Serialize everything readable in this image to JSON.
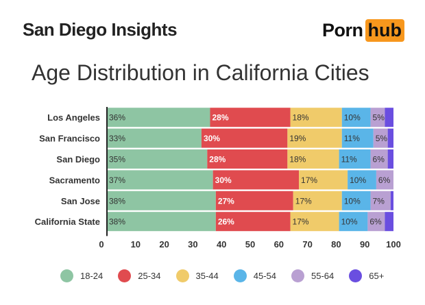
{
  "header": {
    "title": "San Diego Insights",
    "logo_left": "Porn",
    "logo_right": "hub"
  },
  "chart_data": {
    "type": "bar",
    "orientation": "horizontal",
    "stacked": true,
    "title": "Age Distribution in California Cities",
    "categories": [
      "Los Angeles",
      "San Francisco",
      "San Diego",
      "Sacramento",
      "San Jose",
      "California State"
    ],
    "series": [
      {
        "name": "18-24",
        "color": "#8ec5a3",
        "values": [
          36,
          33,
          35,
          37,
          38,
          38
        ]
      },
      {
        "name": "25-34",
        "color": "#e04b4f",
        "values": [
          28,
          30,
          28,
          30,
          27,
          26
        ]
      },
      {
        "name": "35-44",
        "color": "#f0cb6a",
        "values": [
          18,
          19,
          18,
          17,
          17,
          17
        ]
      },
      {
        "name": "45-54",
        "color": "#5ab5e8",
        "values": [
          10,
          11,
          11,
          10,
          10,
          10
        ]
      },
      {
        "name": "55-64",
        "color": "#b9a0d2",
        "values": [
          5,
          5,
          6,
          6,
          7,
          6
        ]
      },
      {
        "name": "65+",
        "color": "#6a4ee0",
        "values": [
          3,
          2,
          2,
          0,
          1,
          3
        ]
      }
    ],
    "xlim": [
      0,
      100
    ],
    "xticks": [
      0,
      10,
      20,
      30,
      40,
      50,
      60,
      70,
      80,
      90,
      100
    ],
    "legend_position": "bottom",
    "grid": false
  }
}
